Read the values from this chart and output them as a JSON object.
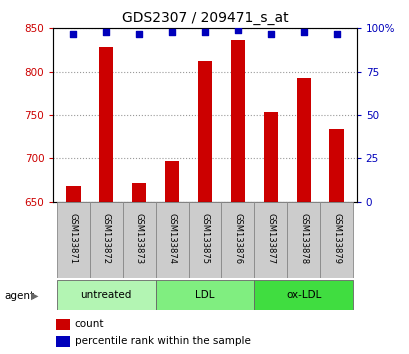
{
  "title": "GDS2307 / 209471_s_at",
  "samples": [
    "GSM133871",
    "GSM133872",
    "GSM133873",
    "GSM133874",
    "GSM133875",
    "GSM133876",
    "GSM133877",
    "GSM133878",
    "GSM133879"
  ],
  "counts": [
    668,
    829,
    672,
    697,
    812,
    836,
    753,
    793,
    734
  ],
  "percentiles": [
    97,
    98,
    97,
    98,
    98,
    99,
    97,
    98,
    97
  ],
  "groups": [
    {
      "label": "untreated",
      "samples": [
        0,
        1,
        2
      ],
      "color": "#b3f5b3"
    },
    {
      "label": "LDL",
      "samples": [
        3,
        4,
        5
      ],
      "color": "#80ee80"
    },
    {
      "label": "ox-LDL",
      "samples": [
        6,
        7,
        8
      ],
      "color": "#40dd40"
    }
  ],
  "ymin": 650,
  "ymax": 850,
  "yticks": [
    650,
    700,
    750,
    800,
    850
  ],
  "y2ticks": [
    0,
    25,
    50,
    75,
    100
  ],
  "bar_color": "#cc0000",
  "dot_color": "#0000bb",
  "bar_bottom": 650,
  "left_axis_color": "#cc0000",
  "right_axis_color": "#0000bb",
  "background_color": "#ffffff",
  "grid_color": "#999999",
  "label_box_color": "#cccccc",
  "label_box_edge": "#888888"
}
